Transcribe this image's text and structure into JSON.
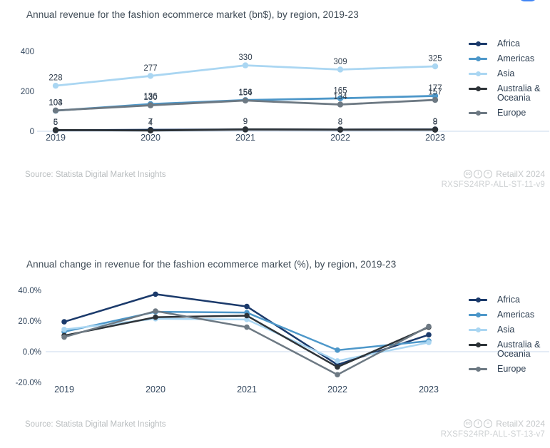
{
  "ui": {
    "floating_button_color": "#4286f5",
    "license_icons": [
      {
        "name": "cc-icon",
        "glyph": "cc"
      },
      {
        "name": "by-icon",
        "glyph": "i"
      },
      {
        "name": "nd-icon",
        "glyph": "="
      }
    ]
  },
  "chart_data": [
    {
      "type": "line",
      "title": "Annual revenue for the fashion ecommerce market (bn$), by region, 2019-23",
      "source": "Source: Statista Digital Market Insights",
      "credit": "RetailX 2024",
      "code": "RXSFS24RP-ALL-ST-11-v9",
      "categories": [
        "2019",
        "2020",
        "2021",
        "2022",
        "2023"
      ],
      "series": [
        {
          "name": "Africa",
          "color": "#1b3a6b",
          "values": [
            5,
            7,
            9,
            8,
            9
          ]
        },
        {
          "name": "Americas",
          "color": "#4d97c9",
          "values": [
            103,
            136,
            156,
            165,
            177
          ]
        },
        {
          "name": "Asia",
          "color": "#aad6f2",
          "values": [
            228,
            277,
            330,
            309,
            325
          ]
        },
        {
          "name": "Australia & Oceania",
          "color": "#2d3338",
          "values": [
            6,
            4,
            9,
            8,
            8
          ]
        },
        {
          "name": "Europe",
          "color": "#6d7983",
          "values": [
            104,
            130,
            154,
            134,
            157
          ]
        }
      ],
      "ylabel": "",
      "xlabel": "",
      "ylim": [
        0,
        400
      ],
      "yticks": [
        400,
        200,
        0
      ],
      "ytick_format": "int",
      "grid": "zero-line-only",
      "legend_position": "right",
      "data_labels": true
    },
    {
      "type": "line",
      "title": "Annual change in revenue for the fashion ecommerce market (%), by region, 2019-23",
      "source": "Source: Statista Digital Market Insights",
      "credit": "RetailX 2024",
      "code": "RXSFS24RP-ALL-ST-13-v7",
      "categories": [
        "2019",
        "2020",
        "2021",
        "2022",
        "2023"
      ],
      "series": [
        {
          "name": "Africa",
          "color": "#1b3a6b",
          "values": [
            19.5,
            37.5,
            29.5,
            -8.5,
            11
          ]
        },
        {
          "name": "Americas",
          "color": "#4d97c9",
          "values": [
            13,
            26,
            25.5,
            1,
            7
          ]
        },
        {
          "name": "Asia",
          "color": "#aad6f2",
          "values": [
            14.5,
            21.5,
            21,
            -6,
            6
          ]
        },
        {
          "name": "Australia & Oceania",
          "color": "#2d3338",
          "values": [
            10.5,
            22.5,
            23.5,
            -10,
            16
          ]
        },
        {
          "name": "Europe",
          "color": "#6d7983",
          "values": [
            9.5,
            26.5,
            16,
            -15,
            16.5
          ]
        }
      ],
      "ylabel": "",
      "xlabel": "",
      "ylim": [
        -20,
        40
      ],
      "yticks": [
        40,
        20,
        0,
        -20
      ],
      "ytick_format": "percent1",
      "grid": "zero-line-only",
      "legend_position": "right",
      "data_labels": false
    }
  ]
}
